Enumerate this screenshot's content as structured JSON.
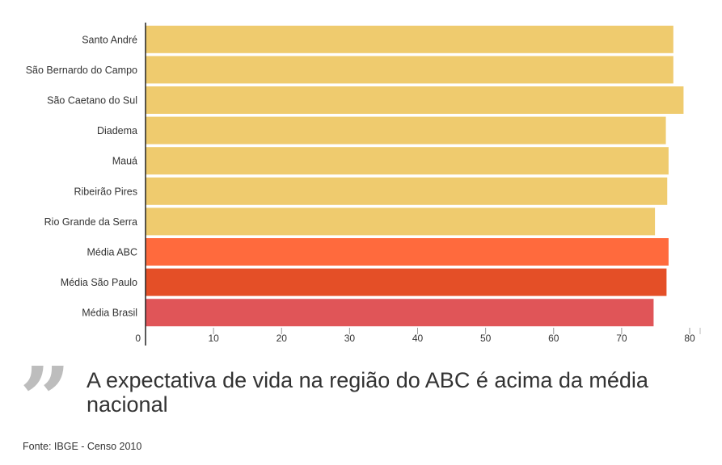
{
  "chart_data": {
    "type": "bar",
    "orientation": "horizontal",
    "categories": [
      "Santo André",
      "São Bernardo do Campo",
      "São Caetano do Sul",
      "Diadema",
      "Mauá",
      "Ribeirão Pires",
      "Rio Grande da Serra",
      "Média ABC",
      "Média São Paulo",
      "Média Brasil"
    ],
    "values": [
      77.6,
      77.6,
      79.1,
      76.5,
      76.9,
      76.7,
      74.9,
      76.9,
      76.6,
      74.7
    ],
    "colors": [
      "#efcb6e",
      "#efcb6e",
      "#efcb6e",
      "#efcb6e",
      "#efcb6e",
      "#efcb6e",
      "#efcb6e",
      "#ff6a3d",
      "#e44f27",
      "#e05558"
    ],
    "xlim": [
      0,
      80
    ],
    "xticks": [
      "0",
      "10",
      "20",
      "30",
      "40",
      "50",
      "60",
      "70",
      "80"
    ],
    "grid": false
  },
  "quote": {
    "mark": "”",
    "text": "A expectativa de vida na região do ABC é acima da média nacional"
  },
  "source": "Fonte: IBGE - Censo 2010"
}
